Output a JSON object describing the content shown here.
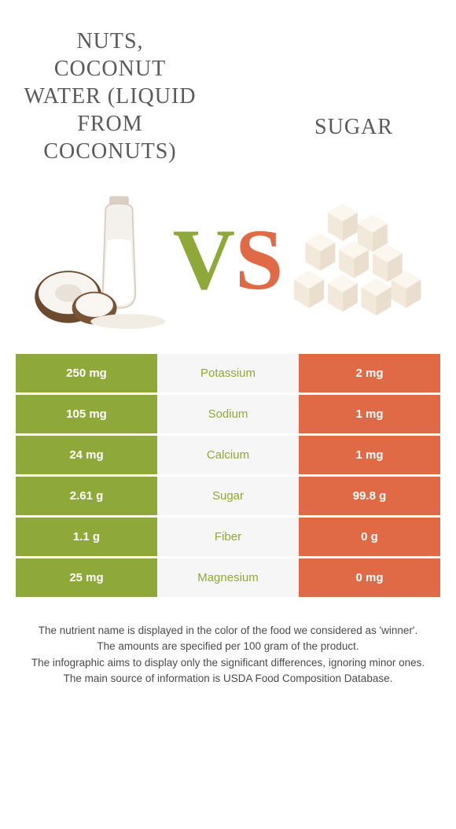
{
  "titles": {
    "left": "Nuts, coconut water (liquid from coconuts)",
    "right": "Sugar"
  },
  "vs": {
    "v": "V",
    "s": "S"
  },
  "colors": {
    "left_bg": "#8fa83a",
    "right_bg": "#e06a45",
    "mid_bg": "#f6f6f6",
    "text_title": "#5a5a5a"
  },
  "table": {
    "rows": [
      {
        "left": "250 mg",
        "label": "Potassium",
        "right": "2 mg",
        "winner": "left"
      },
      {
        "left": "105 mg",
        "label": "Sodium",
        "right": "1 mg",
        "winner": "left"
      },
      {
        "left": "24 mg",
        "label": "Calcium",
        "right": "1 mg",
        "winner": "left"
      },
      {
        "left": "2.61 g",
        "label": "Sugar",
        "right": "99.8 g",
        "winner": "left"
      },
      {
        "left": "1.1 g",
        "label": "Fiber",
        "right": "0 g",
        "winner": "left"
      },
      {
        "left": "25 mg",
        "label": "Magnesium",
        "right": "0 mg",
        "winner": "left"
      }
    ]
  },
  "footer": {
    "line1": "The nutrient name is displayed in the color of the food we considered as 'winner'.",
    "line2": "The amounts are specified per 100 gram of the product.",
    "line3": "The infographic aims to display only the significant differences, ignoring minor ones.",
    "line4": "The main source of information is USDA Food Composition Database."
  }
}
